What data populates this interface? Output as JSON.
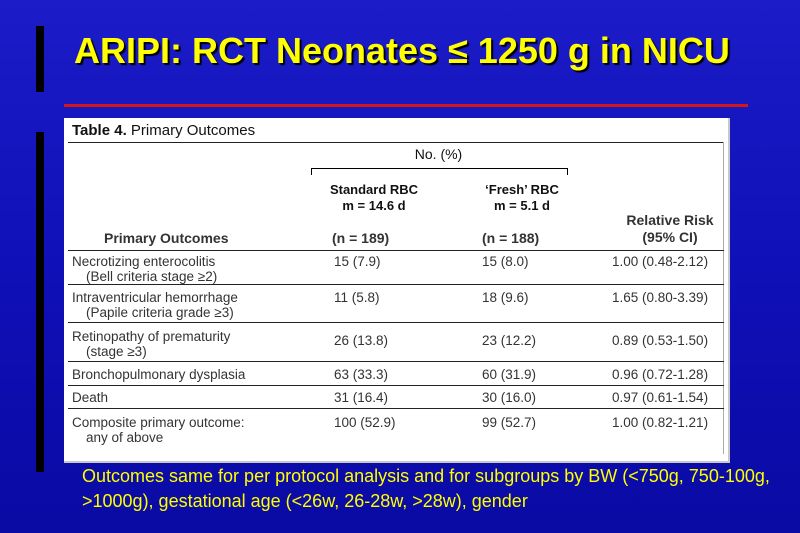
{
  "slide": {
    "title": "ARIPI: RCT Neonates ≤ 1250 g in NICU",
    "footer": "Outcomes same for per protocol analysis and for subgroups by BW (<750g, 750-100g, >1000g), gestational age (<26w, 26-28w, >28w), gender"
  },
  "table": {
    "title_bold": "Table 4.",
    "title_rest": " Primary Outcomes",
    "group_header": "No. (%)",
    "std_line1": "Standard RBC",
    "std_line2": "m = 14.6 d",
    "fresh_line1": "‘Fresh’  RBC",
    "fresh_line2": "m = 5.1 d",
    "col_outcomes": "Primary Outcomes",
    "col_std_n": "(n = 189)",
    "col_fresh_n": "(n = 188)",
    "col_rr1": "Relative Risk",
    "col_rr2": "(95% CI)",
    "rows": [
      {
        "outcome": "Necrotizing enterocolitis",
        "sub": "(Bell criteria stage ≥2)",
        "std": "15 (7.9)",
        "fresh": "15 (8.0)",
        "rr": "1.00 (0.48-2.12)"
      },
      {
        "outcome": "Intraventricular hemorrhage",
        "sub": "(Papile criteria grade ≥3)",
        "std": "11 (5.8)",
        "fresh": "18 (9.6)",
        "rr": "1.65 (0.80-3.39)"
      },
      {
        "outcome": "Retinopathy of prematurity",
        "sub": "(stage ≥3)",
        "std": "26 (13.8)",
        "fresh": "23 (12.2)",
        "rr": "0.89 (0.53-1.50)"
      },
      {
        "outcome": "Bronchopulmonary dysplasia",
        "sub": "",
        "std": "63 (33.3)",
        "fresh": "60 (31.9)",
        "rr": "0.96 (0.72-1.28)"
      },
      {
        "outcome": "Death",
        "sub": "",
        "std": "31 (16.4)",
        "fresh": "30 (16.0)",
        "rr": "0.97 (0.61-1.54)"
      },
      {
        "outcome": "Composite primary outcome:",
        "sub": "any of above",
        "std": "100 (52.9)",
        "fresh": "99 (52.7)",
        "rr": "1.00 (0.82-1.21)"
      }
    ]
  }
}
